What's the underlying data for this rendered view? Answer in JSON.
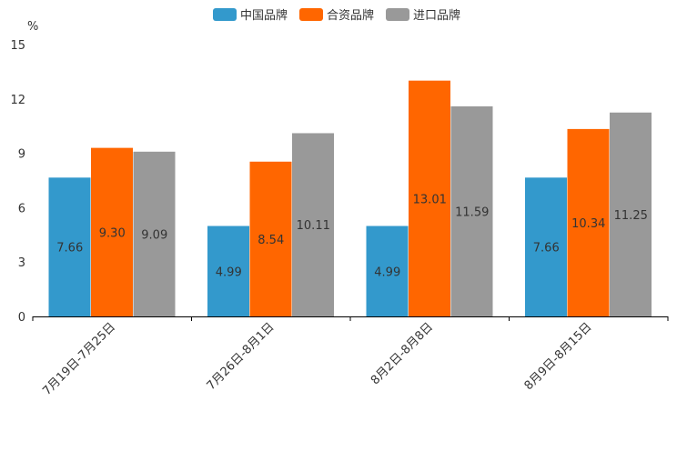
{
  "chart_data": {
    "type": "bar",
    "title": "",
    "xlabel": "",
    "ylabel": "%",
    "ylim": [
      0,
      15
    ],
    "yticks": [
      0,
      3,
      6,
      9,
      12,
      15
    ],
    "grid": false,
    "legend_position": "top-center",
    "categories": [
      "7月19日-7月25日",
      "7月26日-8月1日",
      "8月2日-8月8日",
      "8月9日-8月15日"
    ],
    "series": [
      {
        "name": "中国品牌",
        "color": "#3399CC",
        "values": [
          7.66,
          4.99,
          4.99,
          7.66
        ],
        "labels": [
          "7.66",
          "4.99",
          "4.99",
          "7.66"
        ]
      },
      {
        "name": "合资品牌",
        "color": "#FF6600",
        "values": [
          9.3,
          8.54,
          13.01,
          10.34
        ],
        "labels": [
          "9.30",
          "8.54",
          "13.01",
          "10.34"
        ]
      },
      {
        "name": "进口品牌",
        "color": "#999999",
        "values": [
          9.09,
          10.11,
          11.59,
          11.25
        ],
        "labels": [
          "9.09",
          "10.11",
          "11.59",
          "11.25"
        ]
      }
    ]
  }
}
